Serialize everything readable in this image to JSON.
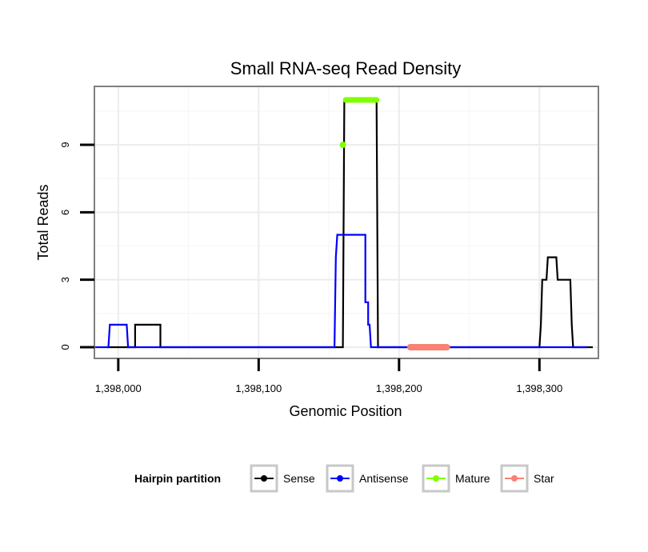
{
  "chart_data": {
    "type": "line",
    "title": "Small RNA-seq Read Density",
    "xlabel": "Genomic Position",
    "ylabel": "Total Reads",
    "xlim": [
      1397983,
      1398342
    ],
    "ylim": [
      -0.5,
      11.6
    ],
    "x_ticks": [
      {
        "value": 1398000,
        "label": "1,398,000"
      },
      {
        "value": 1398100,
        "label": "1,398,100"
      },
      {
        "value": 1398200,
        "label": "1,398,200"
      },
      {
        "value": 1398300,
        "label": "1,398,300"
      }
    ],
    "y_ticks": [
      {
        "value": 0,
        "label": "0"
      },
      {
        "value": 3,
        "label": "3"
      },
      {
        "value": 6,
        "label": "6"
      },
      {
        "value": 9,
        "label": "9"
      }
    ],
    "grid": true,
    "legend_title": "Hairpin partition",
    "legend_position": "bottom",
    "series": [
      {
        "name": "Sense",
        "color": "#000000",
        "points": [
          [
            1397992,
            0
          ],
          [
            1398012,
            0
          ],
          [
            1398012,
            1
          ],
          [
            1398030,
            1
          ],
          [
            1398030,
            0
          ],
          [
            1398160,
            0
          ],
          [
            1398161,
            11
          ],
          [
            1398184,
            11
          ],
          [
            1398185,
            0
          ],
          [
            1398300,
            0
          ],
          [
            1398301,
            1
          ],
          [
            1398302,
            3
          ],
          [
            1398305,
            3
          ],
          [
            1398306,
            4
          ],
          [
            1398312,
            4
          ],
          [
            1398313,
            3
          ],
          [
            1398322,
            3
          ],
          [
            1398323,
            1
          ],
          [
            1398324,
            0
          ],
          [
            1398338,
            0
          ]
        ]
      },
      {
        "name": "Antisense",
        "color": "#0000ff",
        "points": [
          [
            1397983,
            0
          ],
          [
            1397993,
            0
          ],
          [
            1397994,
            1
          ],
          [
            1398006,
            1
          ],
          [
            1398007,
            0
          ],
          [
            1398154,
            0
          ],
          [
            1398155,
            4
          ],
          [
            1398156,
            5
          ],
          [
            1398176,
            5
          ],
          [
            1398176,
            2
          ],
          [
            1398178,
            2
          ],
          [
            1398178,
            1
          ],
          [
            1398179,
            1
          ],
          [
            1398180,
            0
          ],
          [
            1398334,
            0
          ]
        ]
      },
      {
        "name": "Mature",
        "color": "#7fff00",
        "points": [
          [
            1398160,
            9
          ],
          [
            1398162,
            11
          ],
          [
            1398184,
            11
          ]
        ]
      },
      {
        "name": "Star",
        "color": "#fa8072",
        "points": [
          [
            1398208,
            0
          ],
          [
            1398234,
            0
          ]
        ]
      }
    ]
  }
}
